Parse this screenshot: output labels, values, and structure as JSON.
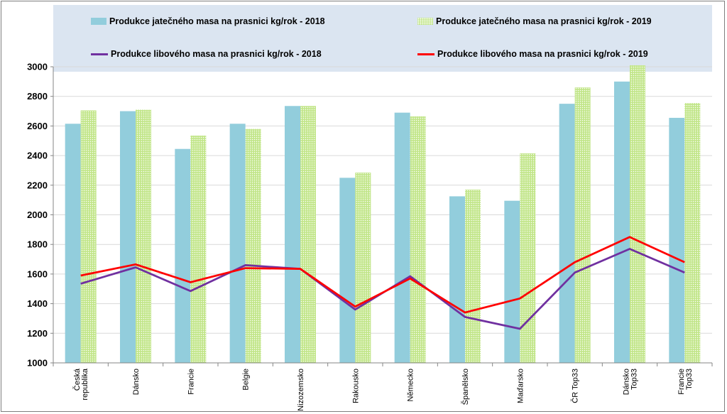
{
  "colors": {
    "bar2018": "#92cddc",
    "bar2019": "#c2e68a",
    "line2018": "#7030a0",
    "line2019": "#ff0000",
    "grid": "#d9d9d9",
    "legend_bg": "#dbe5f1"
  },
  "legend": {
    "bar2018": "Produkce jatečného masa na prasnici kg/rok - 2018",
    "bar2019": "Produkce jatečného masa na prasnici kg/rok - 2019",
    "line2018": "Produkce libového masa na prasnici kg/rok - 2018",
    "line2019": "Produkce libového masa na prasnici kg/rok - 2019"
  },
  "chart_data": {
    "type": "bar",
    "title": "",
    "xlabel": "",
    "ylabel": "",
    "ylim": [
      1000,
      3000
    ],
    "yticks": [
      1000,
      1200,
      1400,
      1600,
      1800,
      2000,
      2200,
      2400,
      2600,
      2800,
      3000
    ],
    "grid": true,
    "legend_position": "top",
    "categories": [
      [
        "Česká",
        "republika"
      ],
      [
        "Dánsko"
      ],
      [
        "Francie"
      ],
      [
        "Belgie"
      ],
      [
        "Nizozemsko"
      ],
      [
        "Rakousko"
      ],
      [
        "Německo"
      ],
      [
        "Španělsko"
      ],
      [
        "Maďarsko"
      ],
      [
        "ČR Top33"
      ],
      [
        "Dánsko",
        "Top33"
      ],
      [
        "Francie",
        "Top33"
      ]
    ],
    "series": [
      {
        "name": "Produkce jatečného masa na prasnici kg/rok - 2018",
        "type": "bar",
        "values": [
          2615,
          2700,
          2445,
          2615,
          2735,
          2250,
          2690,
          2125,
          2095,
          2750,
          2900,
          2655
        ]
      },
      {
        "name": "Produkce jatečného masa na prasnici kg/rok - 2019",
        "type": "bar",
        "values": [
          2705,
          2710,
          2535,
          2580,
          2735,
          2285,
          2665,
          2170,
          2415,
          2860,
          3010,
          2755
        ]
      },
      {
        "name": "Produkce libového masa na prasnici kg/rok - 2018",
        "type": "line",
        "values": [
          1535,
          1645,
          1485,
          1660,
          1635,
          1360,
          1585,
          1310,
          1230,
          1610,
          1770,
          1610
        ]
      },
      {
        "name": "Produkce libového masa na prasnici kg/rok - 2019",
        "type": "line",
        "values": [
          1590,
          1665,
          1545,
          1640,
          1635,
          1380,
          1570,
          1340,
          1435,
          1680,
          1850,
          1680
        ]
      }
    ]
  }
}
